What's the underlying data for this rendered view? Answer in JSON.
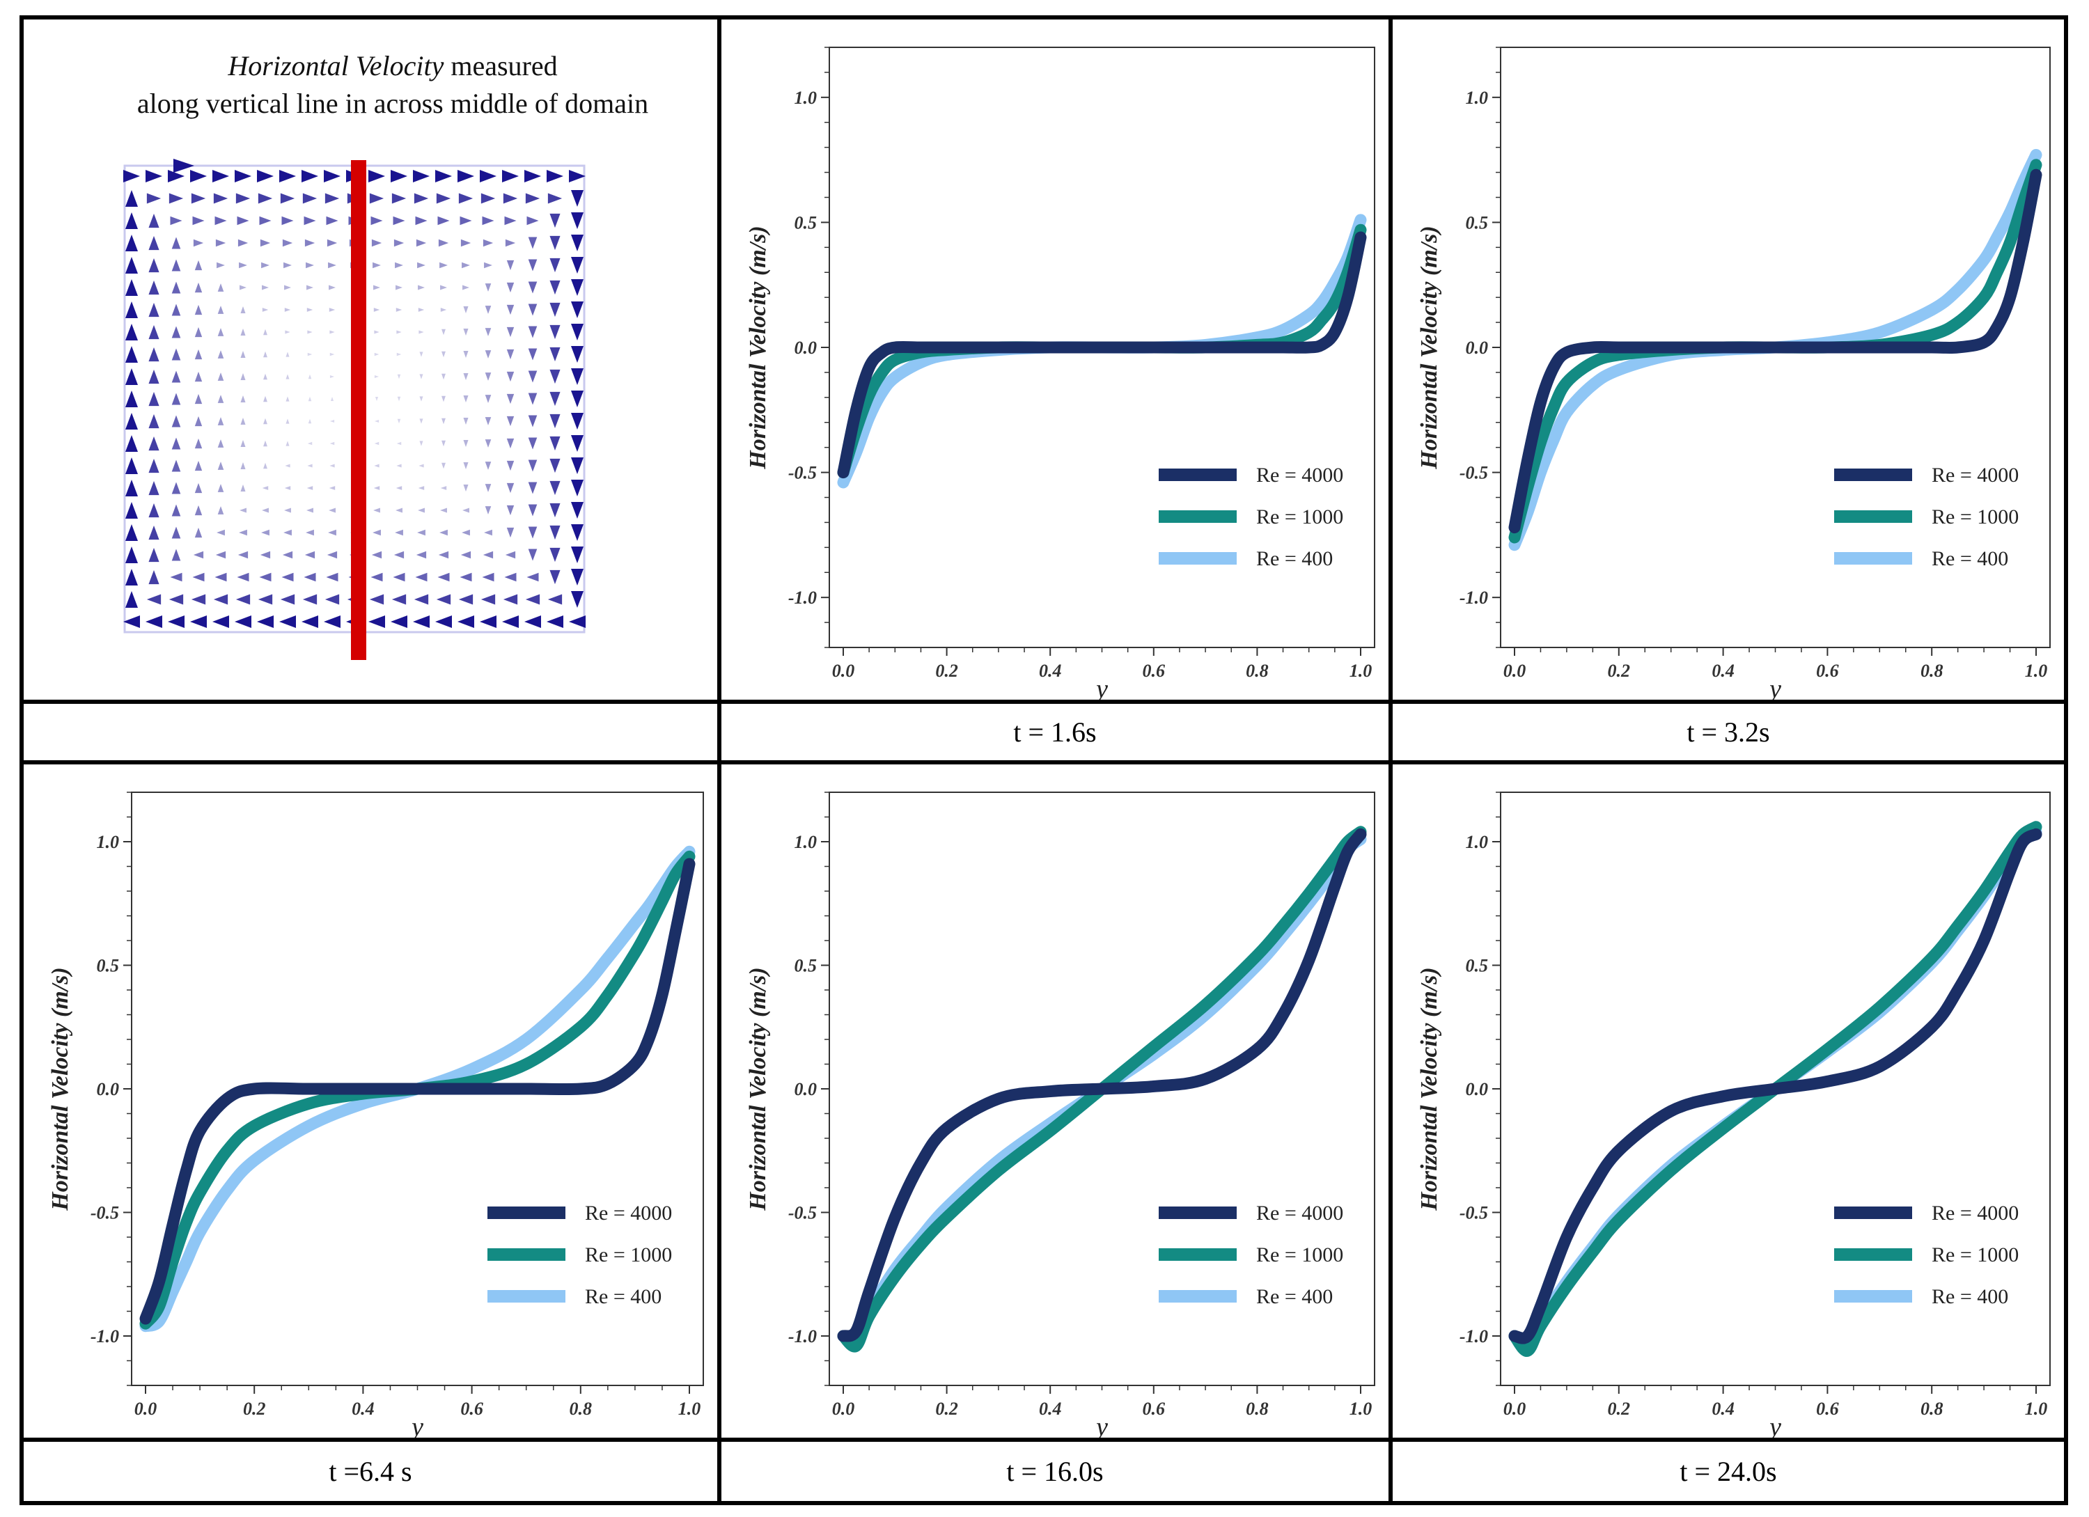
{
  "colors": {
    "re4000": "#1b2f66",
    "re1000": "#138b83",
    "re400": "#8fc6f5",
    "vector": "#1a1490",
    "marker": "#d40000",
    "axis": "#333333"
  },
  "intro": {
    "title_italic": "Horizontal Velocity",
    "title_rest": "measured",
    "title_line2": "along vertical line in across middle of domain",
    "captions": ""
  },
  "axis_text": {
    "xlabel": "y",
    "ylabel": "Horizontal Velocity (m/s)",
    "xticks": [
      "0.0",
      "0.2",
      "0.4",
      "0.6",
      "0.8",
      "1.0"
    ],
    "yticks": [
      "1.0",
      "0.5",
      "0.0",
      "-0.5",
      "-1.0"
    ]
  },
  "legend": [
    "Re = 4000",
    "Re = 1000",
    "Re = 400"
  ],
  "captions": [
    "t = 1.6s",
    "t = 3.2s",
    "t =6.4 s",
    "t = 16.0s",
    "t = 24.0s"
  ],
  "chart_data": [
    {
      "type": "line",
      "caption": "t = 1.6s",
      "xlabel": "y",
      "ylabel": "Horizontal Velocity (m/s)",
      "xlim": [
        0,
        1
      ],
      "ylim": [
        -1.2,
        1.2
      ],
      "grid": false,
      "legend_position": "bottom-right",
      "x": [
        0.0,
        0.025,
        0.05,
        0.075,
        0.1,
        0.15,
        0.2,
        0.3,
        0.4,
        0.5,
        0.6,
        0.7,
        0.8,
        0.85,
        0.9,
        0.925,
        0.95,
        0.975,
        1.0
      ],
      "series": [
        {
          "name": "Re = 4000",
          "values": [
            -0.5,
            -0.25,
            -0.08,
            -0.02,
            0.0,
            0.0,
            0.0,
            0.0,
            0.0,
            0.0,
            0.0,
            0.0,
            0.0,
            0.0,
            0.0,
            0.01,
            0.06,
            0.2,
            0.44
          ]
        },
        {
          "name": "Re = 1000",
          "values": [
            -0.5,
            -0.33,
            -0.19,
            -0.1,
            -0.05,
            -0.02,
            -0.01,
            0.0,
            0.0,
            0.0,
            0.0,
            0.0,
            0.01,
            0.02,
            0.06,
            0.11,
            0.18,
            0.3,
            0.47
          ]
        },
        {
          "name": "Re = 400",
          "values": [
            -0.54,
            -0.42,
            -0.28,
            -0.18,
            -0.12,
            -0.06,
            -0.03,
            -0.01,
            0.0,
            0.0,
            0.0,
            0.01,
            0.04,
            0.07,
            0.13,
            0.18,
            0.26,
            0.36,
            0.51
          ]
        }
      ]
    },
    {
      "type": "line",
      "caption": "t = 3.2s",
      "xlabel": "y",
      "ylabel": "Horizontal Velocity (m/s)",
      "xlim": [
        0,
        1
      ],
      "ylim": [
        -1.2,
        1.2
      ],
      "grid": false,
      "legend_position": "bottom-right",
      "x": [
        0.0,
        0.025,
        0.05,
        0.075,
        0.1,
        0.15,
        0.2,
        0.3,
        0.4,
        0.5,
        0.6,
        0.7,
        0.8,
        0.85,
        0.9,
        0.925,
        0.95,
        0.975,
        1.0
      ],
      "series": [
        {
          "name": "Re = 4000",
          "values": [
            -0.72,
            -0.45,
            -0.22,
            -0.08,
            -0.02,
            0.0,
            0.0,
            0.0,
            0.0,
            0.0,
            0.0,
            0.0,
            0.0,
            0.0,
            0.02,
            0.08,
            0.2,
            0.42,
            0.69
          ]
        },
        {
          "name": "Re = 1000",
          "values": [
            -0.76,
            -0.56,
            -0.38,
            -0.24,
            -0.14,
            -0.06,
            -0.03,
            -0.01,
            0.0,
            0.0,
            0.0,
            0.01,
            0.05,
            0.1,
            0.2,
            0.3,
            0.42,
            0.58,
            0.73
          ]
        },
        {
          "name": "Re = 400",
          "values": [
            -0.79,
            -0.66,
            -0.5,
            -0.37,
            -0.26,
            -0.15,
            -0.09,
            -0.03,
            -0.01,
            0.0,
            0.02,
            0.06,
            0.15,
            0.23,
            0.35,
            0.44,
            0.54,
            0.66,
            0.77
          ]
        }
      ]
    },
    {
      "type": "line",
      "caption": "t =6.4 s",
      "xlabel": "y",
      "ylabel": "Horizontal Velocity (m/s)",
      "xlim": [
        0,
        1
      ],
      "ylim": [
        -1.2,
        1.2
      ],
      "grid": false,
      "legend_position": "bottom-right",
      "x": [
        0.0,
        0.025,
        0.05,
        0.075,
        0.1,
        0.15,
        0.2,
        0.3,
        0.4,
        0.5,
        0.6,
        0.7,
        0.8,
        0.85,
        0.9,
        0.925,
        0.95,
        0.975,
        1.0
      ],
      "series": [
        {
          "name": "Re = 4000",
          "values": [
            -0.93,
            -0.78,
            -0.55,
            -0.33,
            -0.17,
            -0.04,
            0.0,
            0.0,
            0.0,
            0.0,
            0.0,
            0.0,
            0.0,
            0.02,
            0.1,
            0.2,
            0.38,
            0.64,
            0.91
          ]
        },
        {
          "name": "Re = 1000",
          "values": [
            -0.95,
            -0.88,
            -0.7,
            -0.54,
            -0.42,
            -0.25,
            -0.15,
            -0.06,
            -0.02,
            0.0,
            0.03,
            0.1,
            0.25,
            0.38,
            0.55,
            0.65,
            0.76,
            0.87,
            0.94
          ]
        },
        {
          "name": "Re = 400",
          "values": [
            -0.96,
            -0.94,
            -0.82,
            -0.7,
            -0.58,
            -0.41,
            -0.29,
            -0.15,
            -0.06,
            0.0,
            0.08,
            0.2,
            0.4,
            0.53,
            0.67,
            0.74,
            0.82,
            0.9,
            0.96
          ]
        }
      ]
    },
    {
      "type": "line",
      "caption": "t = 16.0s",
      "xlabel": "y",
      "ylabel": "Horizontal Velocity (m/s)",
      "xlim": [
        0,
        1
      ],
      "ylim": [
        -1.2,
        1.2
      ],
      "grid": false,
      "legend_position": "bottom-right",
      "x": [
        0.0,
        0.025,
        0.05,
        0.1,
        0.15,
        0.2,
        0.3,
        0.4,
        0.5,
        0.6,
        0.7,
        0.8,
        0.85,
        0.9,
        0.95,
        0.975,
        1.0
      ],
      "series": [
        {
          "name": "Re = 4000",
          "values": [
            -1.0,
            -0.98,
            -0.82,
            -0.52,
            -0.3,
            -0.16,
            -0.04,
            -0.01,
            0.0,
            0.01,
            0.04,
            0.16,
            0.3,
            0.52,
            0.82,
            0.96,
            1.03
          ]
        },
        {
          "name": "Re = 1000",
          "values": [
            -1.0,
            -1.04,
            -0.92,
            -0.76,
            -0.63,
            -0.52,
            -0.33,
            -0.17,
            0.0,
            0.17,
            0.34,
            0.54,
            0.66,
            0.79,
            0.93,
            1.0,
            1.04
          ]
        },
        {
          "name": "Re = 400",
          "values": [
            -1.0,
            -1.01,
            -0.9,
            -0.73,
            -0.6,
            -0.48,
            -0.29,
            -0.14,
            0.0,
            0.14,
            0.3,
            0.5,
            0.62,
            0.75,
            0.89,
            0.97,
            1.01
          ]
        }
      ]
    },
    {
      "type": "line",
      "caption": "t = 24.0s",
      "xlabel": "y",
      "ylabel": "Horizontal Velocity (m/s)",
      "xlim": [
        0,
        1
      ],
      "ylim": [
        -1.2,
        1.2
      ],
      "grid": false,
      "legend_position": "bottom-right",
      "x": [
        0.0,
        0.025,
        0.05,
        0.1,
        0.15,
        0.2,
        0.3,
        0.4,
        0.5,
        0.6,
        0.7,
        0.8,
        0.85,
        0.9,
        0.95,
        0.975,
        1.0
      ],
      "series": [
        {
          "name": "Re = 4000",
          "values": [
            -1.0,
            -1.0,
            -0.88,
            -0.6,
            -0.4,
            -0.25,
            -0.09,
            -0.03,
            0.0,
            0.03,
            0.09,
            0.25,
            0.4,
            0.6,
            0.88,
            1.0,
            1.03
          ]
        },
        {
          "name": "Re = 1000",
          "values": [
            -1.0,
            -1.06,
            -0.96,
            -0.8,
            -0.66,
            -0.53,
            -0.33,
            -0.16,
            0.0,
            0.16,
            0.33,
            0.53,
            0.66,
            0.8,
            0.96,
            1.03,
            1.06
          ]
        },
        {
          "name": "Re = 400",
          "values": [
            -1.0,
            -1.04,
            -0.94,
            -0.78,
            -0.64,
            -0.51,
            -0.31,
            -0.15,
            0.0,
            0.15,
            0.31,
            0.51,
            0.64,
            0.78,
            0.94,
            1.01,
            1.04
          ]
        }
      ]
    }
  ]
}
